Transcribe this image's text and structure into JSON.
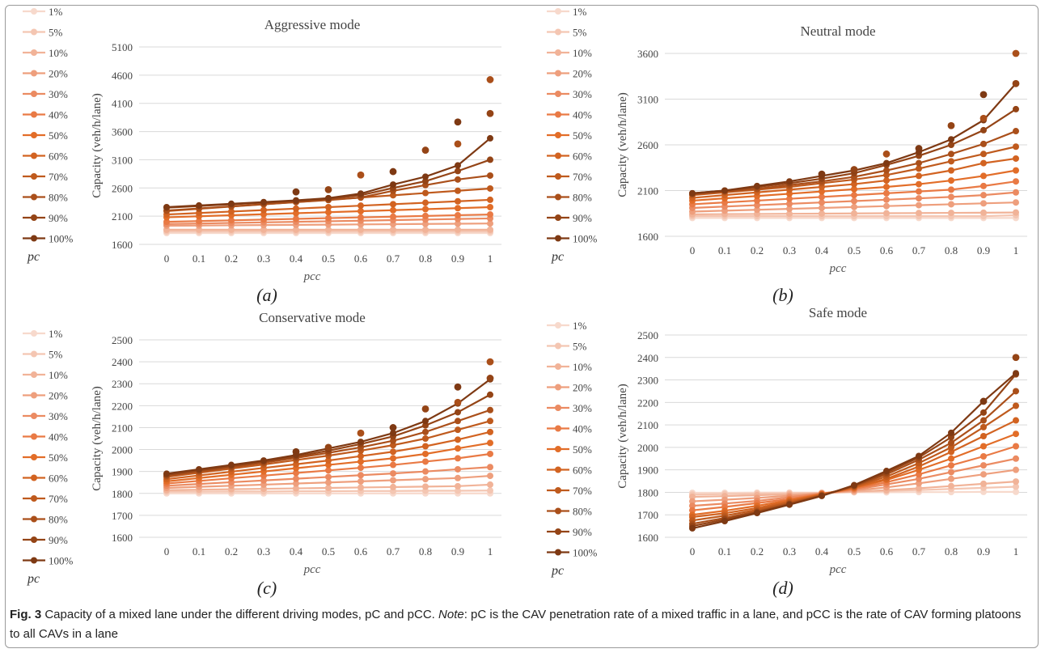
{
  "caption": {
    "label": "Fig. 3",
    "text": "Capacity of a mixed lane under the different driving modes, pC and pCC.",
    "note_label": "Note",
    "note_text": ": pC is the CAV penetration rate of a mixed traffic in a lane, and pCC is the rate of CAV forming platoons to all CAVs in a lane"
  },
  "colors": [
    "#f7d9cc",
    "#f4c6b2",
    "#f1b398",
    "#ee9f7d",
    "#eb8b62",
    "#e97a45",
    "#e26d28",
    "#d26321",
    "#bf5a1d",
    "#aa4f1a",
    "#944416",
    "#7e3913"
  ],
  "chart_data": [
    {
      "type": "line",
      "panel": "(a)",
      "title": "Aggressive mode",
      "xlabel": "pcc",
      "ylabel": "Capacity (veh/h/lane)",
      "legend_title": "pc",
      "x": [
        0,
        0.1,
        0.2,
        0.3,
        0.4,
        0.5,
        0.6,
        0.7,
        0.8,
        0.9,
        1
      ],
      "ylim": [
        1600,
        5100
      ],
      "yticks": [
        1600,
        2100,
        2600,
        3100,
        3600,
        4100,
        4600,
        5100
      ],
      "series": [
        {
          "name": "1%",
          "values": [
            1800,
            1800,
            1800,
            1800,
            1800,
            1800,
            1800,
            1800,
            1800,
            1800,
            1800
          ]
        },
        {
          "name": "5%",
          "values": [
            1830,
            1830,
            1830,
            1830,
            1830,
            1830,
            1830,
            1830,
            1830,
            1830,
            1830
          ]
        },
        {
          "name": "10%",
          "values": [
            1860,
            1860,
            1860,
            1860,
            1860,
            1860,
            1860,
            1860,
            1860,
            1860,
            1860
          ]
        },
        {
          "name": "20%",
          "values": [
            1930,
            1934,
            1938,
            1942,
            1946,
            1950,
            1954,
            1958,
            1962,
            1966,
            1970
          ]
        },
        {
          "name": "30%",
          "values": [
            1960,
            1970,
            1980,
            1990,
            2000,
            2010,
            2020,
            2030,
            2040,
            2050,
            2060
          ]
        },
        {
          "name": "40%",
          "values": [
            2000,
            2013,
            2026,
            2039,
            2052,
            2065,
            2078,
            2091,
            2104,
            2117,
            2130
          ]
        },
        {
          "name": "50%",
          "values": [
            2080,
            2098,
            2116,
            2134,
            2152,
            2170,
            2188,
            2206,
            2224,
            2242,
            2260
          ]
        },
        {
          "name": "60%",
          "values": [
            2130,
            2156,
            2182,
            2208,
            2234,
            2260,
            2286,
            2312,
            2338,
            2364,
            2390
          ]
        },
        {
          "name": "70%",
          "values": [
            2190,
            2230,
            2270,
            2310,
            2350,
            2390,
            2430,
            2470,
            2510,
            2550,
            2590
          ]
        },
        {
          "name": "80%",
          "values": [
            2200,
            2237,
            2274,
            2311,
            2348,
            2385,
            2430,
            2550,
            2650,
            2750,
            2820
          ]
        },
        {
          "name": "90%",
          "values": [
            2250,
            2280,
            2310,
            2340,
            2370,
            2410,
            2470,
            2600,
            2720,
            2900,
            3100
          ]
        },
        {
          "name": "100%",
          "values": [
            2260,
            2290,
            2320,
            2350,
            2380,
            2420,
            2500,
            2660,
            2800,
            3000,
            3480
          ]
        }
      ],
      "markers": [
        {
          "x": 0.4,
          "y": 2530
        },
        {
          "x": 0.5,
          "y": 2570
        },
        {
          "x": 0.6,
          "y": 2830
        },
        {
          "x": 0.7,
          "y": 2890
        },
        {
          "x": 0.8,
          "y": 3270
        },
        {
          "x": 0.9,
          "y": 3380
        },
        {
          "x": 0.9,
          "y": 3770
        },
        {
          "x": 1,
          "y": 3920
        },
        {
          "x": 1,
          "y": 4520
        }
      ]
    },
    {
      "type": "line",
      "panel": "(b)",
      "title": "Neutral mode",
      "xlabel": "pcc",
      "ylabel": "Capacity (veh/h/lane)",
      "legend_title": "pc",
      "x": [
        0,
        0.1,
        0.2,
        0.3,
        0.4,
        0.5,
        0.6,
        0.7,
        0.8,
        0.9,
        1
      ],
      "ylim": [
        1600,
        3600
      ],
      "yticks": [
        1600,
        2100,
        2600,
        3100,
        3600
      ],
      "series": [
        {
          "name": "1%",
          "values": [
            1800,
            1800,
            1800,
            1800,
            1800,
            1800,
            1800,
            1800,
            1800,
            1800,
            1800
          ]
        },
        {
          "name": "5%",
          "values": [
            1820,
            1820,
            1820,
            1820,
            1820,
            1820,
            1820,
            1820,
            1820,
            1820,
            1830
          ]
        },
        {
          "name": "10%",
          "values": [
            1840,
            1842,
            1844,
            1846,
            1848,
            1850,
            1852,
            1854,
            1856,
            1858,
            1860
          ]
        },
        {
          "name": "20%",
          "values": [
            1870,
            1880,
            1890,
            1900,
            1910,
            1920,
            1930,
            1940,
            1950,
            1960,
            1970
          ]
        },
        {
          "name": "30%",
          "values": [
            1910,
            1925,
            1940,
            1955,
            1970,
            1985,
            2000,
            2015,
            2030,
            2050,
            2080
          ]
        },
        {
          "name": "40%",
          "values": [
            1950,
            1970,
            1990,
            2010,
            2030,
            2050,
            2070,
            2090,
            2110,
            2150,
            2200
          ]
        },
        {
          "name": "50%",
          "values": [
            1990,
            2015,
            2040,
            2065,
            2090,
            2115,
            2140,
            2170,
            2210,
            2260,
            2320
          ]
        },
        {
          "name": "60%",
          "values": [
            2020,
            2050,
            2080,
            2110,
            2140,
            2170,
            2210,
            2260,
            2320,
            2400,
            2450
          ]
        },
        {
          "name": "70%",
          "values": [
            2050,
            2080,
            2110,
            2140,
            2180,
            2220,
            2270,
            2340,
            2420,
            2500,
            2580
          ]
        },
        {
          "name": "80%",
          "values": [
            2060,
            2090,
            2120,
            2160,
            2200,
            2250,
            2320,
            2400,
            2500,
            2610,
            2750
          ]
        },
        {
          "name": "90%",
          "values": [
            2070,
            2100,
            2140,
            2180,
            2230,
            2290,
            2380,
            2480,
            2600,
            2760,
            2990
          ]
        },
        {
          "name": "100%",
          "values": [
            2070,
            2100,
            2150,
            2200,
            2260,
            2320,
            2400,
            2520,
            2660,
            2870,
            3270
          ]
        }
      ],
      "markers": [
        {
          "x": 0.4,
          "y": 2280
        },
        {
          "x": 0.5,
          "y": 2330
        },
        {
          "x": 0.6,
          "y": 2500
        },
        {
          "x": 0.7,
          "y": 2560
        },
        {
          "x": 0.8,
          "y": 2810
        },
        {
          "x": 0.9,
          "y": 2890
        },
        {
          "x": 0.9,
          "y": 3150
        },
        {
          "x": 1,
          "y": 3270
        },
        {
          "x": 1,
          "y": 3600
        }
      ]
    },
    {
      "type": "line",
      "panel": "(c)",
      "title": "Conservative mode",
      "xlabel": "pcc",
      "ylabel": "Capacity (veh/h/lane)",
      "legend_title": "pc",
      "x": [
        0,
        0.1,
        0.2,
        0.3,
        0.4,
        0.5,
        0.6,
        0.7,
        0.8,
        0.9,
        1
      ],
      "ylim": [
        1600,
        2500
      ],
      "yticks": [
        1600,
        1700,
        1800,
        1900,
        2000,
        2100,
        2200,
        2300,
        2400,
        2500
      ],
      "series": [
        {
          "name": "1%",
          "values": [
            1800,
            1800,
            1800,
            1800,
            1800,
            1800,
            1800,
            1800,
            1800,
            1800,
            1800
          ]
        },
        {
          "name": "5%",
          "values": [
            1808,
            1808,
            1809,
            1809,
            1810,
            1810,
            1811,
            1811,
            1812,
            1812,
            1813
          ]
        },
        {
          "name": "10%",
          "values": [
            1815,
            1817,
            1819,
            1821,
            1823,
            1825,
            1827,
            1829,
            1831,
            1833,
            1840
          ]
        },
        {
          "name": "20%",
          "values": [
            1825,
            1830,
            1835,
            1840,
            1845,
            1850,
            1855,
            1860,
            1865,
            1870,
            1880
          ]
        },
        {
          "name": "30%",
          "values": [
            1835,
            1843,
            1851,
            1859,
            1867,
            1875,
            1883,
            1891,
            1900,
            1910,
            1920
          ]
        },
        {
          "name": "40%",
          "values": [
            1845,
            1857,
            1869,
            1881,
            1893,
            1905,
            1917,
            1930,
            1945,
            1960,
            1980
          ]
        },
        {
          "name": "50%",
          "values": [
            1855,
            1870,
            1885,
            1900,
            1915,
            1930,
            1945,
            1960,
            1980,
            2005,
            2030
          ]
        },
        {
          "name": "60%",
          "values": [
            1865,
            1882,
            1899,
            1916,
            1933,
            1950,
            1970,
            1990,
            2015,
            2045,
            2080
          ]
        },
        {
          "name": "70%",
          "values": [
            1875,
            1894,
            1913,
            1932,
            1952,
            1972,
            1995,
            2020,
            2050,
            2090,
            2130
          ]
        },
        {
          "name": "80%",
          "values": [
            1880,
            1900,
            1920,
            1940,
            1962,
            1985,
            2010,
            2040,
            2080,
            2130,
            2180
          ]
        },
        {
          "name": "90%",
          "values": [
            1885,
            1905,
            1925,
            1945,
            1968,
            1995,
            2025,
            2060,
            2110,
            2170,
            2250
          ]
        },
        {
          "name": "100%",
          "values": [
            1890,
            1910,
            1930,
            1950,
            1975,
            2005,
            2035,
            2075,
            2130,
            2210,
            2320
          ]
        }
      ],
      "markers": [
        {
          "x": 0.4,
          "y": 1990
        },
        {
          "x": 0.5,
          "y": 2010
        },
        {
          "x": 0.6,
          "y": 2075
        },
        {
          "x": 0.7,
          "y": 2100
        },
        {
          "x": 0.8,
          "y": 2185
        },
        {
          "x": 0.9,
          "y": 2215
        },
        {
          "x": 0.9,
          "y": 2285
        },
        {
          "x": 1,
          "y": 2325
        },
        {
          "x": 1,
          "y": 2400
        }
      ]
    },
    {
      "type": "line",
      "panel": "(d)",
      "title": "Safe mode",
      "xlabel": "pcc",
      "ylabel": "Capacity (veh/h/lane)",
      "legend_title": "pc",
      "x": [
        0,
        0.1,
        0.2,
        0.3,
        0.4,
        0.5,
        0.6,
        0.7,
        0.8,
        0.9,
        1
      ],
      "ylim": [
        1600,
        2500
      ],
      "yticks": [
        1600,
        1700,
        1800,
        1900,
        2000,
        2100,
        2200,
        2300,
        2400,
        2500
      ],
      "series": [
        {
          "name": "1%",
          "values": [
            1798,
            1798,
            1799,
            1799,
            1799,
            1800,
            1800,
            1801,
            1801,
            1802,
            1802
          ]
        },
        {
          "name": "5%",
          "values": [
            1790,
            1792,
            1794,
            1796,
            1798,
            1802,
            1806,
            1810,
            1815,
            1820,
            1825
          ]
        },
        {
          "name": "10%",
          "values": [
            1780,
            1783,
            1787,
            1791,
            1796,
            1803,
            1810,
            1818,
            1828,
            1838,
            1848
          ]
        },
        {
          "name": "20%",
          "values": [
            1760,
            1767,
            1775,
            1785,
            1795,
            1808,
            1822,
            1840,
            1860,
            1880,
            1900
          ]
        },
        {
          "name": "30%",
          "values": [
            1740,
            1750,
            1762,
            1778,
            1795,
            1812,
            1835,
            1860,
            1890,
            1920,
            1950
          ]
        },
        {
          "name": "40%",
          "values": [
            1720,
            1735,
            1752,
            1770,
            1793,
            1816,
            1845,
            1880,
            1920,
            1960,
            2005
          ]
        },
        {
          "name": "50%",
          "values": [
            1700,
            1718,
            1740,
            1765,
            1792,
            1820,
            1855,
            1900,
            1950,
            2005,
            2060
          ]
        },
        {
          "name": "60%",
          "values": [
            1690,
            1707,
            1730,
            1760,
            1790,
            1822,
            1860,
            1915,
            1980,
            2050,
            2120
          ]
        },
        {
          "name": "70%",
          "values": [
            1675,
            1696,
            1722,
            1755,
            1788,
            1825,
            1870,
            1930,
            2000,
            2090,
            2185
          ]
        },
        {
          "name": "80%",
          "values": [
            1660,
            1686,
            1715,
            1750,
            1786,
            1828,
            1880,
            1945,
            2020,
            2120,
            2250
          ]
        },
        {
          "name": "90%",
          "values": [
            1650,
            1679,
            1711,
            1747,
            1785,
            1830,
            1888,
            1955,
            2045,
            2155,
            2325
          ]
        },
        {
          "name": "100%",
          "values": [
            1640,
            1672,
            1708,
            1745,
            1784,
            1832,
            1895,
            1962,
            2065,
            2205,
            2330
          ]
        }
      ],
      "markers": [
        {
          "x": 0.9,
          "y": 2205
        },
        {
          "x": 1,
          "y": 2400
        }
      ]
    }
  ]
}
